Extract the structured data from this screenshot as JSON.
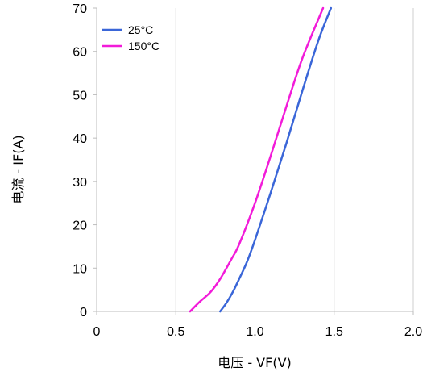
{
  "chart_data": {
    "type": "line",
    "xlabel": "电压 - VF(V)",
    "ylabel": "电流 - IF(A)",
    "xlim": [
      0,
      2.0
    ],
    "ylim": [
      0,
      70
    ],
    "xticks": [
      0,
      0.5,
      1.0,
      1.5,
      2.0
    ],
    "xtick_labels": [
      "0",
      "0.5",
      "1.0",
      "1.5",
      "2.0"
    ],
    "yticks": [
      0,
      10,
      20,
      30,
      40,
      50,
      60,
      70
    ],
    "ytick_labels": [
      "0",
      "10",
      "20",
      "30",
      "40",
      "50",
      "60",
      "70"
    ],
    "grid": "vertical",
    "legend_position": "top-left",
    "series": [
      {
        "name": "25°C",
        "color": "#3a66d8",
        "x": [
          0.78,
          0.82,
          0.86,
          0.9,
          0.95,
          1.0,
          1.1,
          1.2,
          1.3,
          1.4,
          1.48
        ],
        "y": [
          0,
          2,
          4.5,
          7.5,
          11.5,
          16.5,
          27.5,
          39,
          51,
          62.5,
          70
        ]
      },
      {
        "name": "150°C",
        "color": "#f21bd9",
        "x": [
          0.59,
          0.65,
          0.72,
          0.78,
          0.85,
          0.9,
          1.0,
          1.1,
          1.2,
          1.3,
          1.43
        ],
        "y": [
          0,
          2.2,
          4.5,
          7.5,
          12,
          15.5,
          25,
          36,
          47.5,
          58.5,
          70
        ]
      }
    ]
  }
}
